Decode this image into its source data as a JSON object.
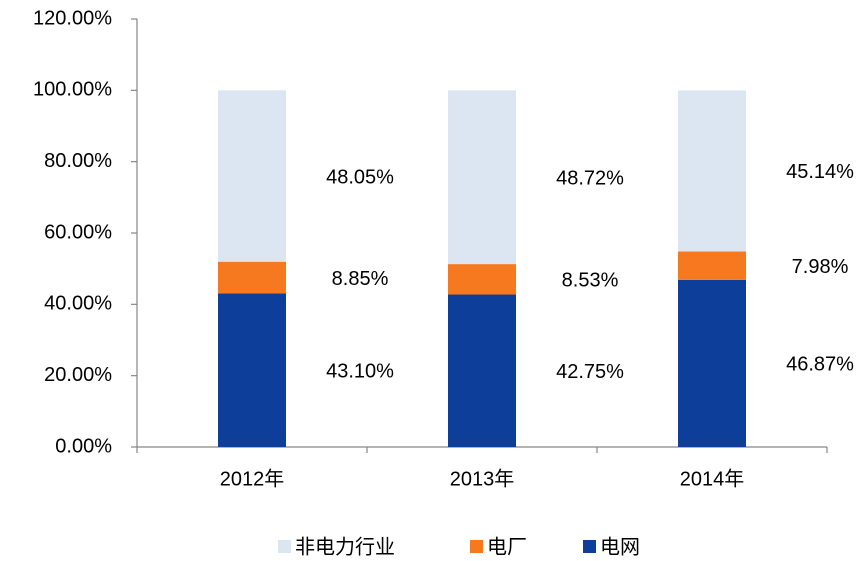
{
  "chart_data": {
    "type": "stacked_bar",
    "categories": [
      "2012年",
      "2013年",
      "2014年"
    ],
    "series": [
      {
        "name": "非电力行业",
        "color": "#dce6f2",
        "values": [
          48.05,
          48.72,
          45.14
        ],
        "value_labels": [
          "48.05%",
          "48.72%",
          "45.14%"
        ]
      },
      {
        "name": "电厂",
        "color": "#f7791f",
        "values": [
          8.85,
          8.53,
          7.98
        ],
        "value_labels": [
          "8.85%",
          "8.53%",
          "7.98%"
        ]
      },
      {
        "name": "电网",
        "color": "#0d3f9a",
        "values": [
          43.1,
          42.75,
          46.87
        ],
        "value_labels": [
          "43.10%",
          "42.75%",
          "46.87%"
        ]
      }
    ],
    "ylim": [
      0,
      120
    ],
    "yticks": [
      {
        "value": 0,
        "label": "0.00%"
      },
      {
        "value": 20,
        "label": "20.00%"
      },
      {
        "value": 40,
        "label": "40.00%"
      },
      {
        "value": 60,
        "label": "60.00%"
      },
      {
        "value": 80,
        "label": "80.00%"
      },
      {
        "value": 100,
        "label": "100.00%"
      },
      {
        "value": 120,
        "label": "120.00%"
      }
    ],
    "legend": "bottom"
  }
}
